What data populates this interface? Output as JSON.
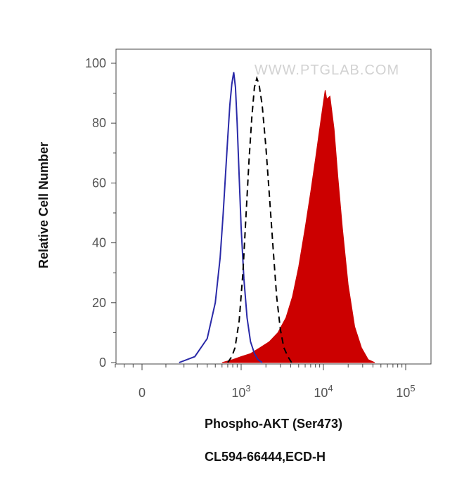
{
  "chart_data": {
    "type": "area",
    "title": "",
    "xlabel": "Phospho-AKT (Ser473)",
    "ylabel": "Relative Cell Number",
    "caption": "CL594-66444,ECD-H",
    "watermark": "WWW.PTGLAB.COM",
    "x_scale": "biexponential",
    "xlim": [
      -300,
      150000
    ],
    "ylim": [
      0,
      100
    ],
    "y_ticks": [
      "0",
      "20",
      "40",
      "60",
      "80",
      "100"
    ],
    "x_ticks": [
      {
        "base": "0",
        "exp": "",
        "value": 0
      },
      {
        "base": "10",
        "exp": "3",
        "value": 1000
      },
      {
        "base": "10",
        "exp": "4",
        "value": 10000
      },
      {
        "base": "10",
        "exp": "5",
        "value": 100000
      }
    ],
    "grid": false,
    "legend": "none",
    "series": [
      {
        "style": "solid-line",
        "color": "#2a2aa8",
        "x": [
          170,
          280,
          400,
          500,
          570,
          620,
          660,
          700,
          740,
          780,
          820,
          860,
          900,
          950,
          1000,
          1080,
          1180,
          1300,
          1450,
          1600,
          1800
        ],
        "y": [
          0,
          2,
          8,
          20,
          35,
          50,
          63,
          75,
          86,
          93,
          97,
          92,
          80,
          62,
          45,
          28,
          15,
          7,
          3,
          1,
          0
        ]
      },
      {
        "style": "dashed-line",
        "color": "#000000",
        "x": [
          700,
          780,
          850,
          950,
          1050,
          1150,
          1250,
          1350,
          1450,
          1550,
          1650,
          1800,
          2000,
          2200,
          2450,
          2700,
          3000,
          3300,
          3700,
          4100
        ],
        "y": [
          0,
          2,
          5,
          14,
          30,
          50,
          68,
          82,
          92,
          95,
          93,
          86,
          72,
          56,
          38,
          22,
          11,
          5,
          2,
          0
        ]
      },
      {
        "style": "filled-area",
        "color": "#cc0000",
        "x": [
          600,
          800,
          1000,
          1300,
          1700,
          2200,
          2800,
          3500,
          4200,
          5000,
          6000,
          7000,
          8000,
          9000,
          10000,
          10500,
          11000,
          12000,
          13500,
          15000,
          17000,
          20000,
          24000,
          29000,
          35000,
          42000
        ],
        "y": [
          0,
          1,
          2,
          3,
          5,
          7,
          10,
          15,
          22,
          32,
          45,
          57,
          68,
          78,
          87,
          91,
          88,
          89,
          78,
          62,
          45,
          26,
          12,
          5,
          1,
          0
        ]
      }
    ]
  }
}
